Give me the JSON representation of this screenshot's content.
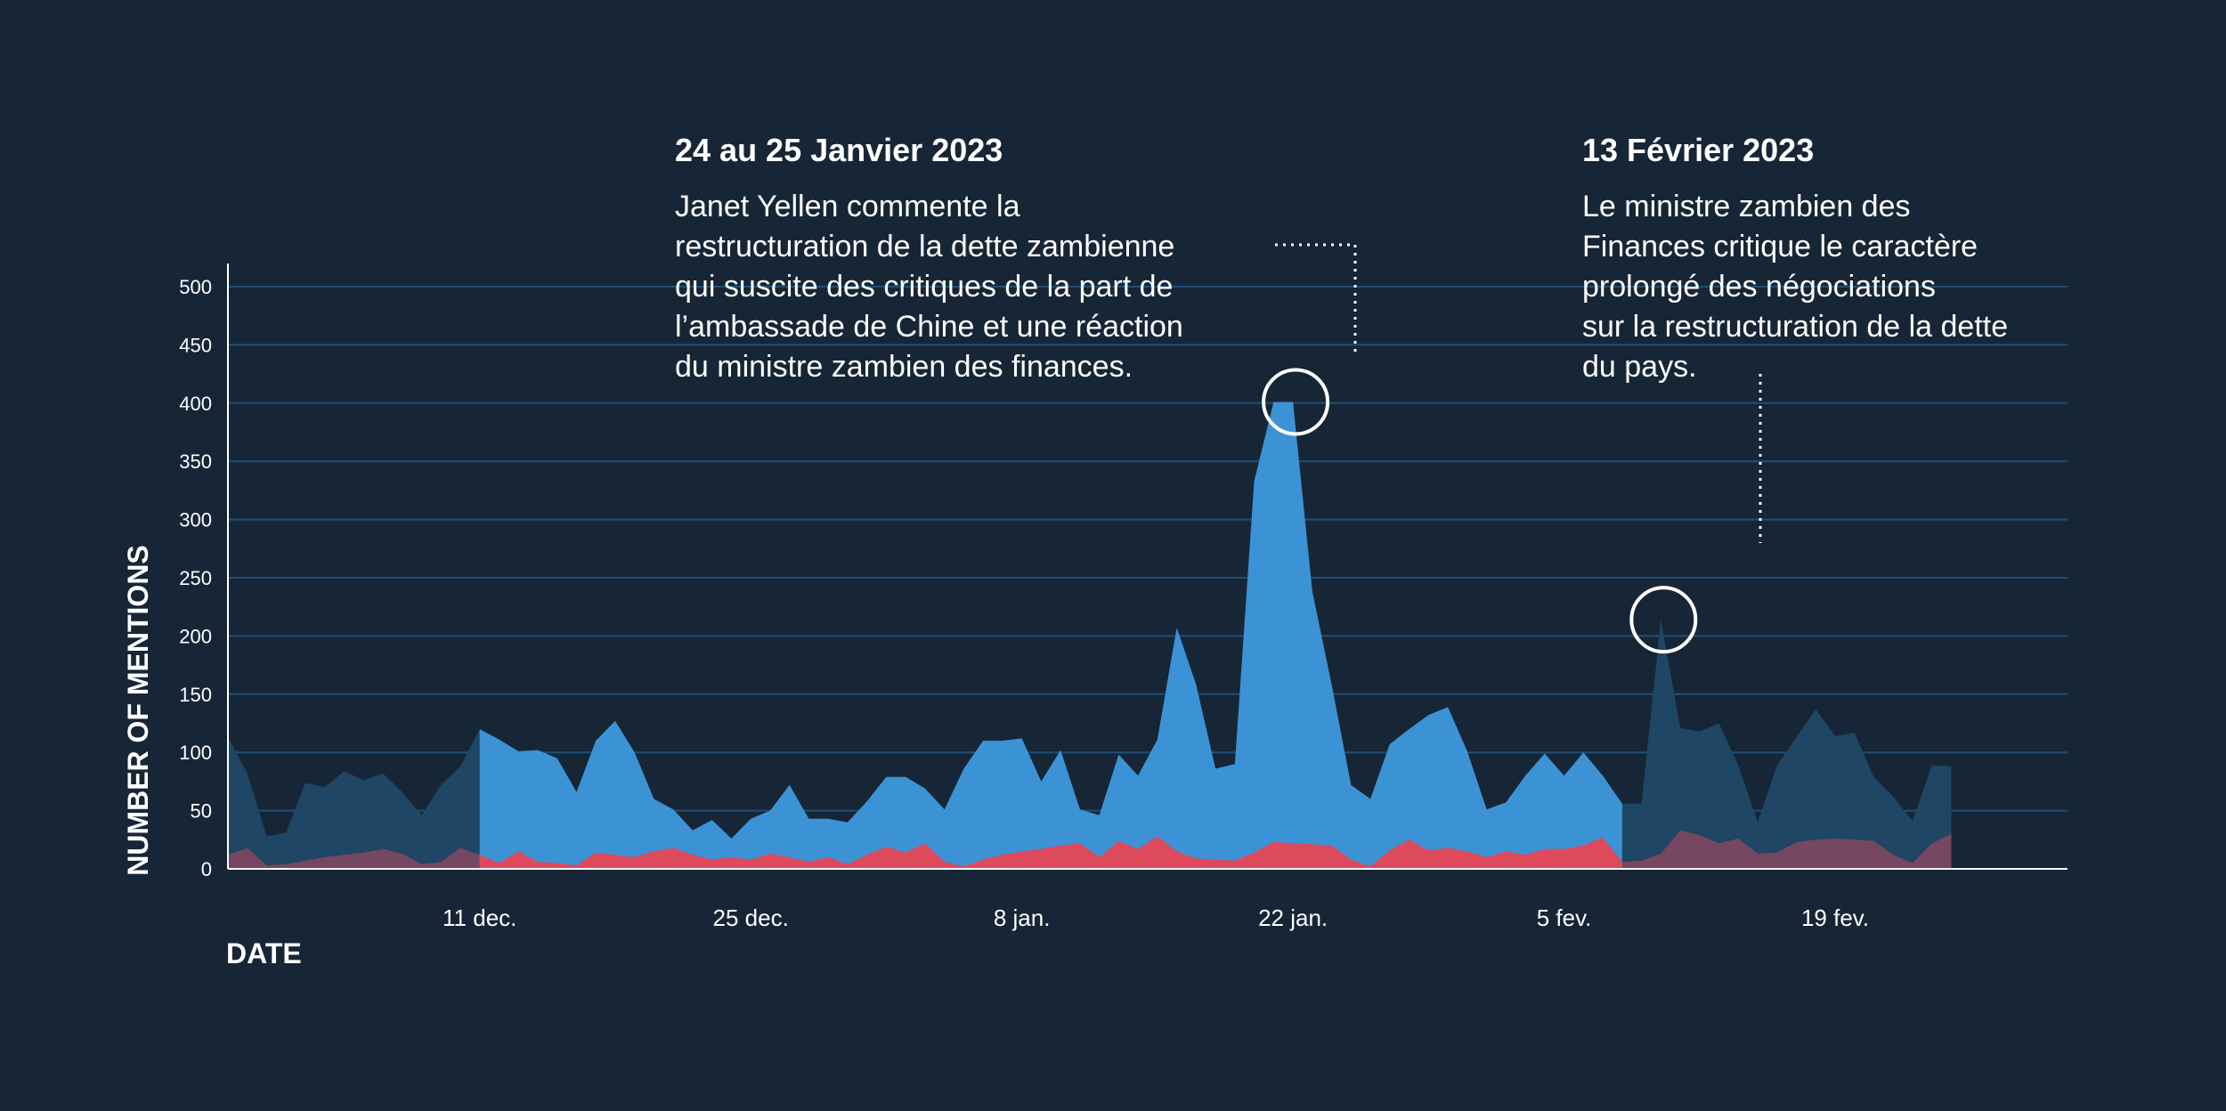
{
  "chart_data": {
    "type": "area",
    "xlabel": "DATE",
    "ylabel": "NUMBER OF MENTIONS",
    "ylim": [
      0,
      500
    ],
    "yticks": [
      0,
      50,
      100,
      150,
      200,
      250,
      300,
      350,
      400,
      450,
      500
    ],
    "x_start": "2022-11-28",
    "x_end": "2023-03-03",
    "xticks": [
      {
        "date": "2022-12-11",
        "label": "11 dec."
      },
      {
        "date": "2022-12-25",
        "label": "25 dec."
      },
      {
        "date": "2023-01-08",
        "label": "8 jan."
      },
      {
        "date": "2023-01-22",
        "label": "22 jan."
      },
      {
        "date": "2023-02-05",
        "label": "5 fev."
      },
      {
        "date": "2023-02-19",
        "label": "19 fev."
      }
    ],
    "grid": true,
    "colors": {
      "background": "#172636",
      "total_area": "#3b93d6",
      "shaded_area": "#1f4664",
      "red_area": "#dd4a5c",
      "grid": "#1f4f79",
      "text": "#ffffff"
    },
    "highlight_range": [
      "2022-12-11",
      "2023-02-08"
    ],
    "series": [
      {
        "values": [
          [
            "2022-11-28",
            113
          ],
          [
            "2022-11-29",
            82
          ],
          [
            "2022-11-30",
            28
          ],
          [
            "2022-12-01",
            31
          ],
          [
            "2022-12-02",
            74
          ],
          [
            "2022-12-03",
            70
          ],
          [
            "2022-12-04",
            84
          ],
          [
            "2022-12-05",
            76
          ],
          [
            "2022-12-06",
            82
          ],
          [
            "2022-12-07",
            66
          ],
          [
            "2022-12-08",
            46
          ],
          [
            "2022-12-09",
            72
          ],
          [
            "2022-12-10",
            88
          ],
          [
            "2022-12-11",
            120
          ],
          [
            "2022-12-12",
            111
          ],
          [
            "2022-12-13",
            101
          ],
          [
            "2022-12-14",
            102
          ],
          [
            "2022-12-15",
            95
          ],
          [
            "2022-12-16",
            66
          ],
          [
            "2022-12-17",
            110
          ],
          [
            "2022-12-18",
            127
          ],
          [
            "2022-12-19",
            100
          ],
          [
            "2022-12-20",
            60
          ],
          [
            "2022-12-21",
            51
          ],
          [
            "2022-12-22",
            33
          ],
          [
            "2022-12-23",
            42
          ],
          [
            "2022-12-24",
            26
          ],
          [
            "2022-12-25",
            43
          ],
          [
            "2022-12-26",
            50
          ],
          [
            "2022-12-27",
            72
          ],
          [
            "2022-12-28",
            43
          ],
          [
            "2022-12-29",
            43
          ],
          [
            "2022-12-30",
            40
          ],
          [
            "2022-12-31",
            58
          ],
          [
            "2023-01-01",
            79
          ],
          [
            "2023-01-02",
            79
          ],
          [
            "2023-01-03",
            69
          ],
          [
            "2023-01-04",
            51
          ],
          [
            "2023-01-05",
            86
          ],
          [
            "2023-01-06",
            110
          ],
          [
            "2023-01-07",
            110
          ],
          [
            "2023-01-08",
            112
          ],
          [
            "2023-01-09",
            75
          ],
          [
            "2023-01-10",
            102
          ],
          [
            "2023-01-11",
            51
          ],
          [
            "2023-01-12",
            46
          ],
          [
            "2023-01-13",
            98
          ],
          [
            "2023-01-14",
            80
          ],
          [
            "2023-01-15",
            111
          ],
          [
            "2023-01-16",
            207
          ],
          [
            "2023-01-17",
            158
          ],
          [
            "2023-01-18",
            86
          ],
          [
            "2023-01-19",
            90
          ],
          [
            "2023-01-20",
            333
          ],
          [
            "2023-01-21",
            401
          ],
          [
            "2023-01-22",
            401
          ],
          [
            "2023-01-23",
            238
          ],
          [
            "2023-01-24",
            158
          ],
          [
            "2023-01-25",
            72
          ],
          [
            "2023-01-26",
            60
          ],
          [
            "2023-01-27",
            107
          ],
          [
            "2023-01-28",
            120
          ],
          [
            "2023-01-29",
            132
          ],
          [
            "2023-01-30",
            139
          ],
          [
            "2023-01-31",
            101
          ],
          [
            "2023-02-01",
            51
          ],
          [
            "2023-02-02",
            57
          ],
          [
            "2023-02-03",
            80
          ],
          [
            "2023-02-04",
            99
          ],
          [
            "2023-02-05",
            80
          ],
          [
            "2023-02-06",
            100
          ],
          [
            "2023-02-07",
            80
          ],
          [
            "2023-02-08",
            56
          ],
          [
            "2023-02-09",
            56
          ],
          [
            "2023-02-10",
            214
          ],
          [
            "2023-02-11",
            121
          ],
          [
            "2023-02-12",
            118
          ],
          [
            "2023-02-13",
            125
          ],
          [
            "2023-02-14",
            89
          ],
          [
            "2023-02-15",
            40
          ],
          [
            "2023-02-16",
            89
          ],
          [
            "2023-02-17",
            113
          ],
          [
            "2023-02-18",
            137
          ],
          [
            "2023-02-19",
            114
          ],
          [
            "2023-02-20",
            117
          ],
          [
            "2023-02-21",
            79
          ],
          [
            "2023-02-22",
            62
          ],
          [
            "2023-02-23",
            41
          ],
          [
            "2023-02-24",
            89
          ],
          [
            "2023-02-25",
            88
          ]
        ]
      },
      {
        "values": [
          [
            "2022-11-28",
            12
          ],
          [
            "2022-11-29",
            18
          ],
          [
            "2022-11-30",
            3
          ],
          [
            "2022-12-01",
            4
          ],
          [
            "2022-12-02",
            7
          ],
          [
            "2022-12-03",
            10
          ],
          [
            "2022-12-04",
            12
          ],
          [
            "2022-12-05",
            14
          ],
          [
            "2022-12-06",
            17
          ],
          [
            "2022-12-07",
            13
          ],
          [
            "2022-12-08",
            4
          ],
          [
            "2022-12-09",
            6
          ],
          [
            "2022-12-10",
            18
          ],
          [
            "2022-12-11",
            12
          ],
          [
            "2022-12-12",
            5
          ],
          [
            "2022-12-13",
            15
          ],
          [
            "2022-12-14",
            6
          ],
          [
            "2022-12-15",
            5
          ],
          [
            "2022-12-16",
            3
          ],
          [
            "2022-12-17",
            14
          ],
          [
            "2022-12-18",
            12
          ],
          [
            "2022-12-19",
            10
          ],
          [
            "2022-12-20",
            15
          ],
          [
            "2022-12-21",
            18
          ],
          [
            "2022-12-22",
            12
          ],
          [
            "2022-12-23",
            8
          ],
          [
            "2022-12-24",
            10
          ],
          [
            "2022-12-25",
            8
          ],
          [
            "2022-12-26",
            13
          ],
          [
            "2022-12-27",
            10
          ],
          [
            "2022-12-28",
            6
          ],
          [
            "2022-12-29",
            10
          ],
          [
            "2022-12-30",
            4
          ],
          [
            "2022-12-31",
            12
          ],
          [
            "2023-01-01",
            19
          ],
          [
            "2023-01-02",
            14
          ],
          [
            "2023-01-03",
            22
          ],
          [
            "2023-01-04",
            6
          ],
          [
            "2023-01-05",
            2
          ],
          [
            "2023-01-06",
            8
          ],
          [
            "2023-01-07",
            12
          ],
          [
            "2023-01-08",
            15
          ],
          [
            "2023-01-09",
            17
          ],
          [
            "2023-01-10",
            20
          ],
          [
            "2023-01-11",
            22
          ],
          [
            "2023-01-12",
            10
          ],
          [
            "2023-01-13",
            24
          ],
          [
            "2023-01-14",
            17
          ],
          [
            "2023-01-15",
            28
          ],
          [
            "2023-01-16",
            15
          ],
          [
            "2023-01-17",
            9
          ],
          [
            "2023-01-18",
            8
          ],
          [
            "2023-01-19",
            7
          ],
          [
            "2023-01-20",
            14
          ],
          [
            "2023-01-21",
            23
          ],
          [
            "2023-01-22",
            22
          ],
          [
            "2023-01-23",
            21
          ],
          [
            "2023-01-24",
            20
          ],
          [
            "2023-01-25",
            8
          ],
          [
            "2023-01-26",
            2
          ],
          [
            "2023-01-27",
            16
          ],
          [
            "2023-01-28",
            25
          ],
          [
            "2023-01-29",
            16
          ],
          [
            "2023-01-30",
            18
          ],
          [
            "2023-01-31",
            15
          ],
          [
            "2023-02-01",
            10
          ],
          [
            "2023-02-02",
            15
          ],
          [
            "2023-02-03",
            12
          ],
          [
            "2023-02-04",
            17
          ],
          [
            "2023-02-05",
            17
          ],
          [
            "2023-02-06",
            20
          ],
          [
            "2023-02-07",
            27
          ],
          [
            "2023-02-08",
            6
          ],
          [
            "2023-02-09",
            7
          ],
          [
            "2023-02-10",
            13
          ],
          [
            "2023-02-11",
            33
          ],
          [
            "2023-02-12",
            29
          ],
          [
            "2023-02-13",
            22
          ],
          [
            "2023-02-14",
            26
          ],
          [
            "2023-02-15",
            13
          ],
          [
            "2023-02-16",
            14
          ],
          [
            "2023-02-17",
            23
          ],
          [
            "2023-02-18",
            25
          ],
          [
            "2023-02-19",
            26
          ],
          [
            "2023-02-20",
            25
          ],
          [
            "2023-02-21",
            24
          ],
          [
            "2023-02-22",
            12
          ],
          [
            "2023-02-23",
            5
          ],
          [
            "2023-02-24",
            22
          ],
          [
            "2023-02-25",
            30
          ]
        ]
      }
    ],
    "annotations": [
      {
        "id": "jan",
        "title": "24 au 25 Janvier 2023",
        "lines": [
          "Janet Yellen commente la",
          "restructuration de la dette zambienne",
          "qui suscite des critiques de la part de",
          "l’ambassade de Chine et une réaction",
          "du ministre zambien des finances."
        ],
        "point_date": "2023-01-22",
        "point_value": 401
      },
      {
        "id": "feb",
        "title": "13 Février 2023",
        "lines": [
          "Le ministre zambien des",
          "Finances critique le caractère",
          "prolongé des négociations",
          "sur la restructuration de la dette",
          "du pays."
        ],
        "point_date": "2023-02-10",
        "point_value": 214
      }
    ]
  }
}
